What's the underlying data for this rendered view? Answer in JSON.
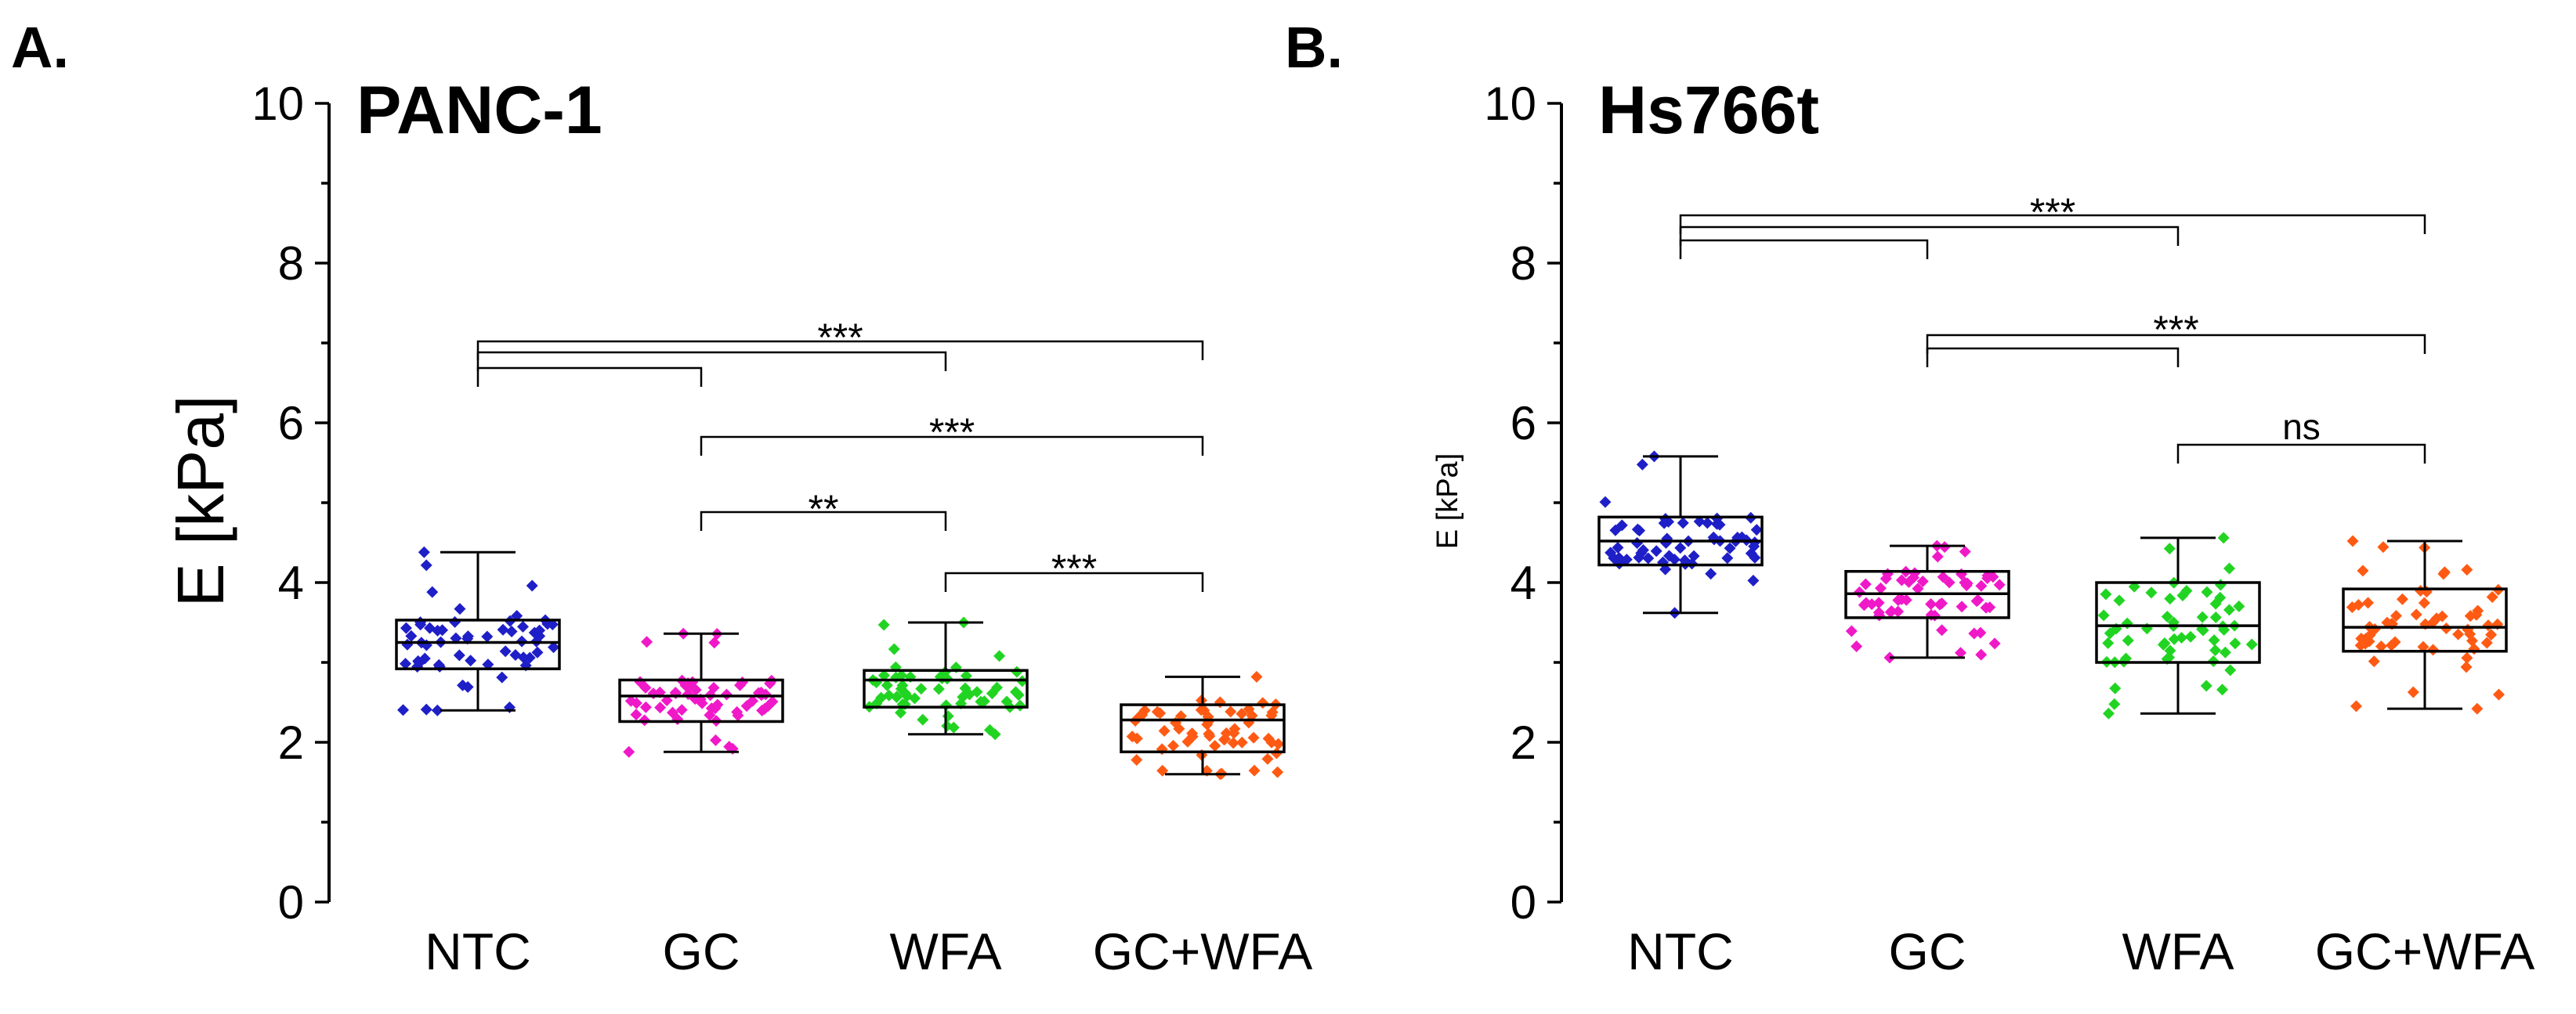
{
  "chart_data": [
    {
      "type": "box",
      "panel_label": "A.",
      "title": "PANC-1",
      "ylabel": "E [kPa]",
      "ylim": [
        0,
        10
      ],
      "yticks": [
        "0",
        "2",
        "4",
        "6",
        "8",
        "10"
      ],
      "categories": [
        "NTC",
        "GC",
        "WFA",
        "GC+WFA"
      ],
      "colors": [
        "#1f1fc8",
        "#f019c8",
        "#22d422",
        "#ff5a14"
      ],
      "boxes": [
        {
          "min": 2.4,
          "q1": 2.92,
          "median": 3.25,
          "q3": 3.53,
          "max": 4.38
        },
        {
          "min": 1.88,
          "q1": 2.26,
          "median": 2.58,
          "q3": 2.78,
          "max": 3.36
        },
        {
          "min": 2.1,
          "q1": 2.44,
          "median": 2.78,
          "q3": 2.9,
          "max": 3.5
        },
        {
          "min": 1.6,
          "q1": 1.88,
          "median": 2.28,
          "q3": 2.47,
          "max": 2.82
        }
      ],
      "significance": [
        {
          "from": 0,
          "to": 1,
          "label": ""
        },
        {
          "from": 0,
          "to": 2,
          "label": ""
        },
        {
          "from": 0,
          "to": 3,
          "label": "***"
        },
        {
          "from": 1,
          "to": 3,
          "label": "***"
        },
        {
          "from": 1,
          "to": 2,
          "label": "**"
        },
        {
          "from": 2,
          "to": 3,
          "label": "***"
        }
      ]
    },
    {
      "type": "box",
      "panel_label": "B.",
      "title": "Hs766t",
      "ylabel": "E [kPa]",
      "ylim": [
        0,
        10
      ],
      "yticks": [
        "0",
        "2",
        "4",
        "6",
        "8",
        "10"
      ],
      "categories": [
        "NTC",
        "GC",
        "WFA",
        "GC+WFA"
      ],
      "colors": [
        "#1f1fc8",
        "#f019c8",
        "#22d422",
        "#ff5a14"
      ],
      "boxes": [
        {
          "min": 3.62,
          "q1": 4.22,
          "median": 4.52,
          "q3": 4.82,
          "max": 5.58
        },
        {
          "min": 3.06,
          "q1": 3.56,
          "median": 3.86,
          "q3": 4.14,
          "max": 4.46
        },
        {
          "min": 2.36,
          "q1": 3.0,
          "median": 3.46,
          "q3": 4.0,
          "max": 4.56
        },
        {
          "min": 2.42,
          "q1": 3.14,
          "median": 3.44,
          "q3": 3.92,
          "max": 4.52
        }
      ],
      "significance": [
        {
          "from": 0,
          "to": 1,
          "label": ""
        },
        {
          "from": 0,
          "to": 2,
          "label": ""
        },
        {
          "from": 0,
          "to": 3,
          "label": "***"
        },
        {
          "from": 1,
          "to": 2,
          "label": ""
        },
        {
          "from": 1,
          "to": 3,
          "label": "***"
        },
        {
          "from": 2,
          "to": 3,
          "label": "ns"
        }
      ]
    }
  ]
}
